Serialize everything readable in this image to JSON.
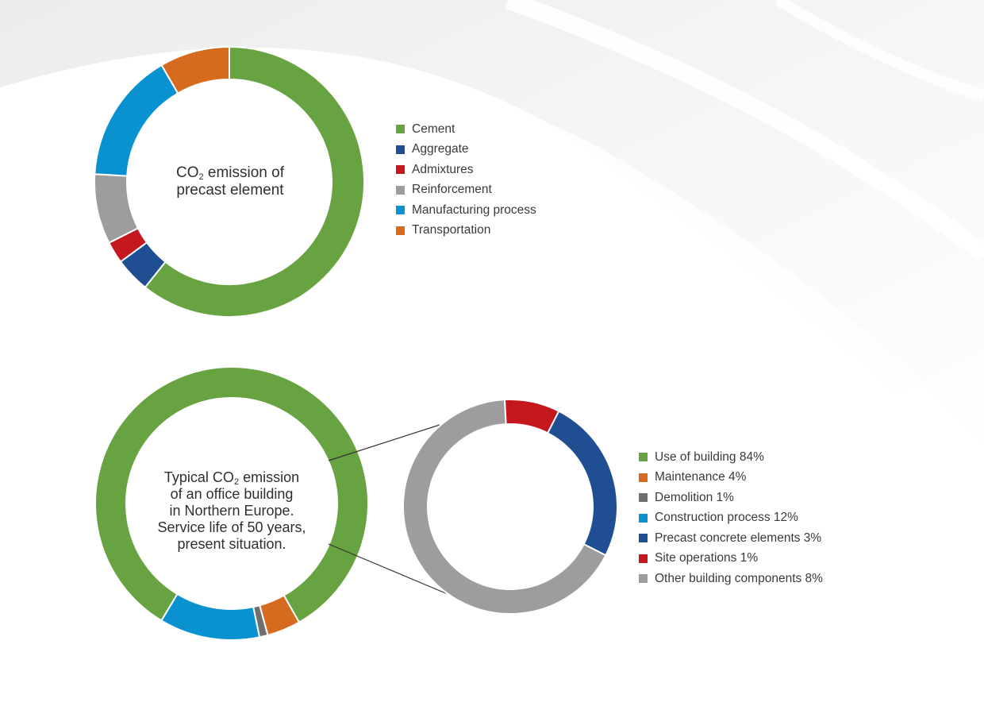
{
  "colors": {
    "green": "#68A342",
    "dark_blue": "#1F4E92",
    "red": "#C4171E",
    "gray": "#9D9D9D",
    "light_blue": "#0A92D0",
    "orange": "#D66A1E",
    "dark_gray": "#6F6F6F"
  },
  "chart1": {
    "center_label": {
      "line1_pre": "CO",
      "line1_sub": "2",
      "line1_post": " emission of",
      "line2": "precast element"
    }
  },
  "chart2": {
    "center_label": {
      "line1_pre": "Typical CO",
      "line1_sub": "2",
      "line1_post": " emission",
      "line2": "of an office building",
      "line3": "in Northern Europe.",
      "line4": "Service life of 50 years,",
      "line5": "present situation."
    }
  },
  "chart_data": [
    {
      "type": "pie",
      "variant": "donut",
      "categories": [
        "Cement",
        "Aggregate",
        "Admixtures",
        "Reinforcement",
        "Manufacturing process",
        "Transportation"
      ],
      "values": [
        58,
        4,
        2.5,
        8,
        15,
        8
      ],
      "colors": [
        "#68A342",
        "#1F4E92",
        "#C4171E",
        "#9D9D9D",
        "#0A92D0",
        "#D66A1E"
      ],
      "legend_position": "right",
      "legend_labels": [
        "Cement",
        "Aggregate",
        "Admixtures",
        "Reinforcement",
        "Manufacturing process",
        "Transportation"
      ]
    },
    {
      "type": "pie",
      "variant": "donut",
      "categories": [
        "Use of building",
        "Maintenance",
        "Demolition",
        "Construction process"
      ],
      "values": [
        84,
        4,
        1,
        12
      ],
      "colors": [
        "#68A342",
        "#D66A1E",
        "#6F6F6F",
        "#0A92D0"
      ],
      "legend_position": "right"
    },
    {
      "type": "pie",
      "variant": "donut",
      "title": "",
      "categories": [
        "Site operations",
        "Precast concrete elements",
        "Other building components"
      ],
      "values": [
        1,
        3,
        8
      ],
      "colors": [
        "#C4171E",
        "#1F4E92",
        "#9D9D9D"
      ],
      "legend_position": "right",
      "legend_labels": [
        "Use of building 84%",
        "Maintenance 4%",
        "Demolition 1%",
        "Construction process 12%",
        "Precast concrete elements 3%",
        "Site operations 1%",
        "Other building components 8%"
      ],
      "legend_colors": [
        "#68A342",
        "#D66A1E",
        "#6F6F6F",
        "#0A92D0",
        "#1F4E92",
        "#C4171E",
        "#9D9D9D"
      ]
    }
  ]
}
